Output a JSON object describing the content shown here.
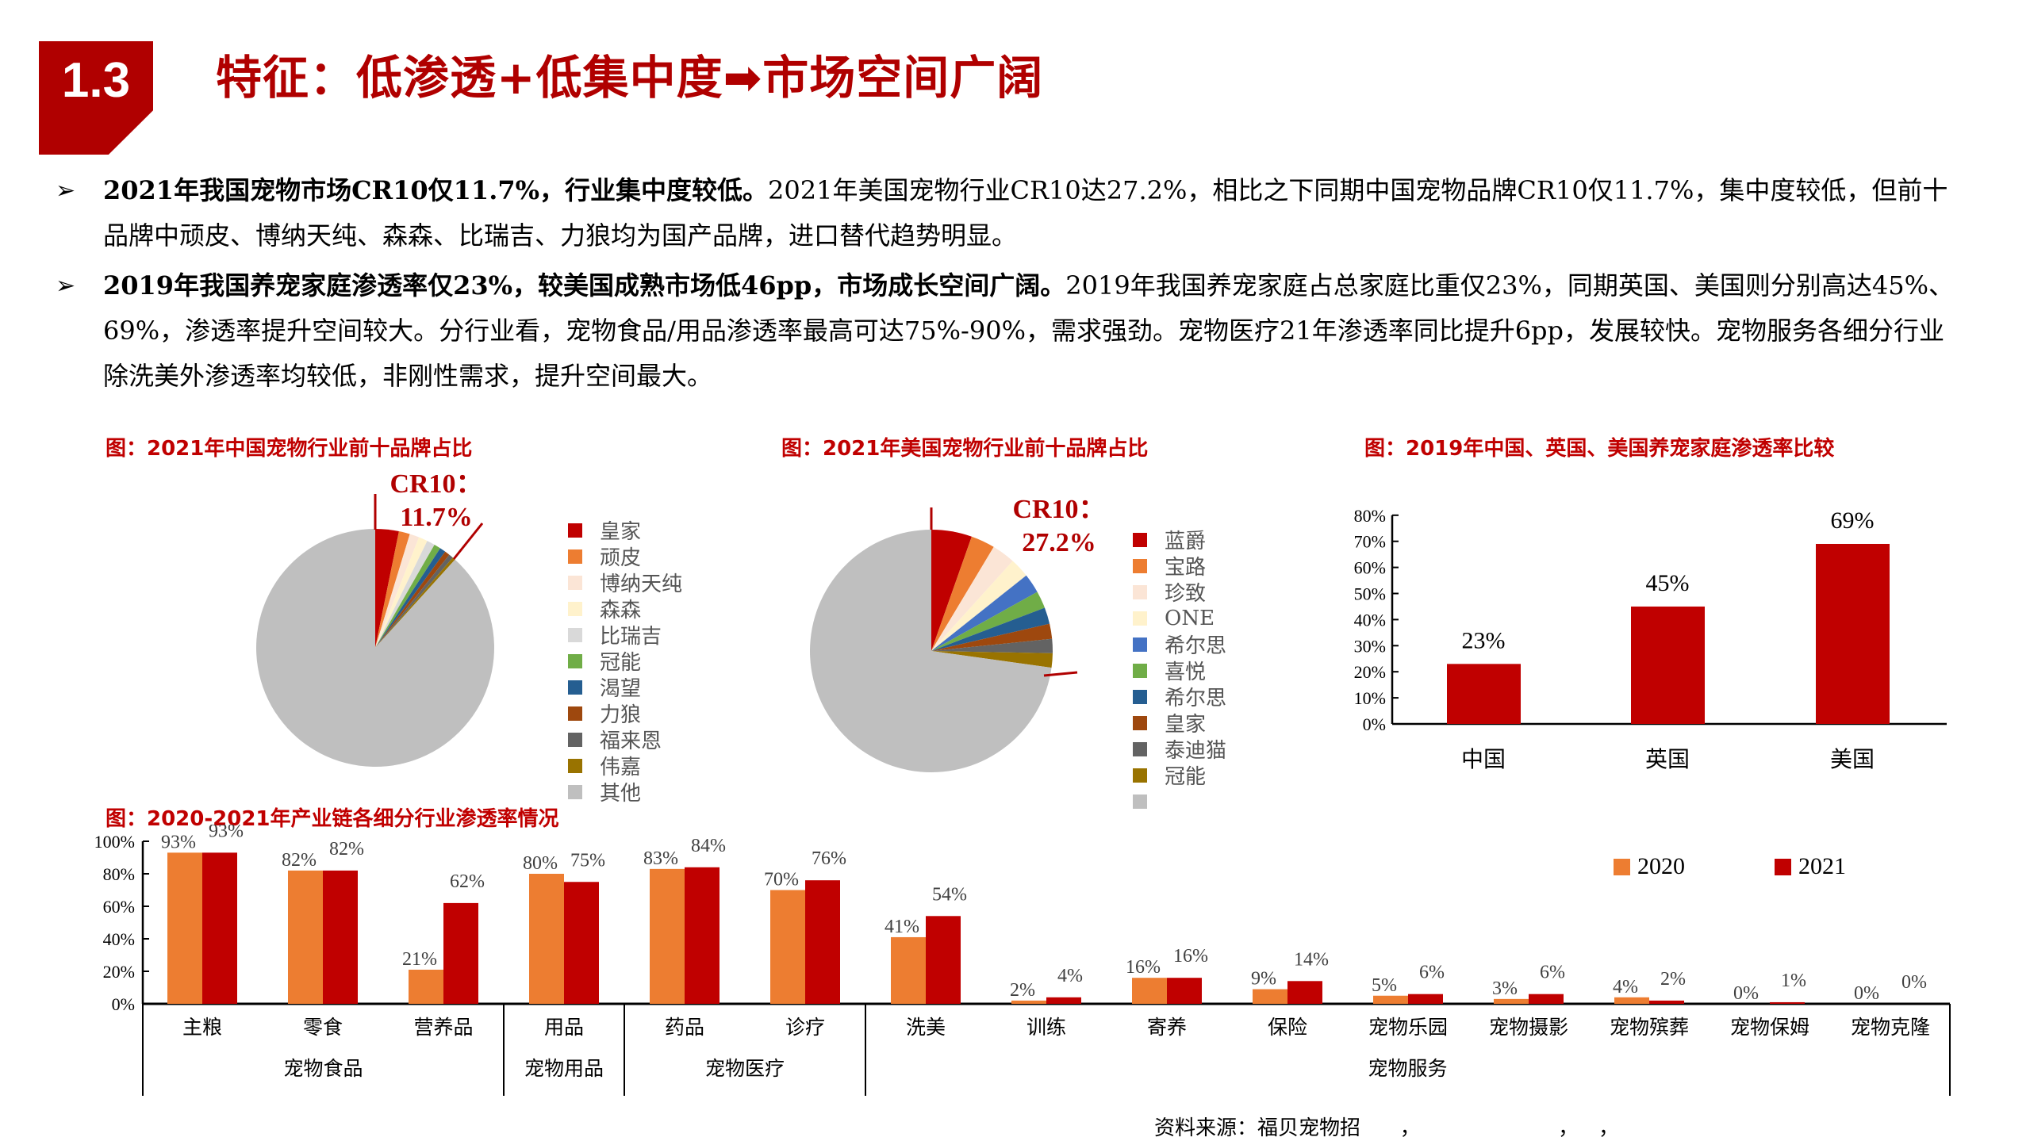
{
  "header": {
    "section_number": "1.3",
    "title": "特征：低渗透+低集中度➡市场空间广阔",
    "accent_color": "#B00000"
  },
  "bullets": [
    {
      "bold": "2021年我国宠物市场CR10仅11.7%，行业集中度较低。",
      "text": "2021年美国宠物行业CR10达27.2%，相比之下同期中国宠物品牌CR10仅11.7%，集中度较低，但前十品牌中顽皮、博纳天纯、森森、比瑞吉、力狼均为国产品牌，进口替代趋势明显。"
    },
    {
      "bold": "2019年我国养宠家庭渗透率仅23%，较美国成熟市场低46pp，市场成长空间广阔。",
      "text": "2019年我国养宠家庭占总家庭比重仅23%，同期英国、美国则分别高达45%、69%，渗透率提升空间较大。分行业看，宠物食品/用品渗透率最高可达75%-90%，需求强劲。宠物医疗21年渗透率同比提升6pp，发展较快。宠物服务各细分行业除洗美外渗透率均较低，非刚性需求，提升空间最大。"
    }
  ],
  "figures": {
    "china_pie_title": "图：2021年中国宠物行业前十品牌占比",
    "us_pie_title": "图：2021年美国宠物行业前十品牌占比",
    "country_bar_title": "图：2019年中国、英国、美国养宠家庭渗透率比较",
    "industry_bar_title": "图：2020-2021年产业链各细分行业渗透率情况"
  },
  "source": "资料来源：福贝宠物招      ，                     ，   ，",
  "chart_data": [
    {
      "type": "pie",
      "title": "图：2021年中国宠物行业前十品牌占比",
      "annotation": [
        "CR10：",
        "11.7%"
      ],
      "labels": [
        "皇家",
        "顽皮",
        "博纳天纯",
        "森森",
        "比瑞吉",
        "冠能",
        "渴望",
        "力狼",
        "福来恩",
        "伟嘉",
        "其他"
      ],
      "values": [
        3.2,
        1.5,
        1.3,
        1.2,
        1.1,
        0.9,
        0.8,
        0.7,
        0.6,
        0.4,
        88.3
      ],
      "colors": [
        "#C00000",
        "#ED7D31",
        "#FBE5D6",
        "#FFF2CC",
        "#D9D9D9",
        "#70AD47",
        "#255E91",
        "#9E480E",
        "#636363",
        "#997300",
        "#BFBFBF"
      ],
      "legend_position": "right"
    },
    {
      "type": "pie",
      "title": "图：2021年美国宠物行业前十品牌占比",
      "annotation": [
        "CR10：",
        "27.2%"
      ],
      "labels": [
        "蓝爵",
        "宝路",
        "珍致",
        "ONE",
        "希尔思",
        "喜悦",
        "希尔思",
        "皇家",
        "泰迪猫",
        "冠能",
        ""
      ],
      "values": [
        5.4,
        3.2,
        3.1,
        2.6,
        2.6,
        2.3,
        2.2,
        2.0,
        1.9,
        1.9,
        72.8
      ],
      "colors": [
        "#C00000",
        "#ED7D31",
        "#FBE5D6",
        "#FFF2CC",
        "#4472C4",
        "#70AD47",
        "#255E91",
        "#9E480E",
        "#636363",
        "#997300",
        "#BFBFBF"
      ],
      "legend_position": "right"
    },
    {
      "type": "bar",
      "title": "图：2019年中国、英国、美国养宠家庭渗透率比较",
      "categories": [
        "中国",
        "英国",
        "美国"
      ],
      "values": [
        23,
        45,
        69
      ],
      "value_labels": [
        "23%",
        "45%",
        "69%"
      ],
      "yticks": [
        "0%",
        "10%",
        "20%",
        "30%",
        "40%",
        "50%",
        "60%",
        "70%",
        "80%"
      ],
      "ylim": [
        0,
        80
      ],
      "color": "#C00000",
      "grid": false
    },
    {
      "type": "bar",
      "title": "图：2020-2021年产业链各细分行业渗透率情况",
      "categories": [
        "主粮",
        "零食",
        "营养品",
        "用品",
        "药品",
        "诊疗",
        "洗美",
        "训练",
        "寄养",
        "保险",
        "宠物乐园",
        "宠物摄影",
        "宠物殡葬",
        "宠物保姆",
        "宠物克隆"
      ],
      "groups": [
        {
          "label": "宠物食品",
          "span": 3
        },
        {
          "label": "宠物用品",
          "span": 1
        },
        {
          "label": "宠物医疗",
          "span": 2
        },
        {
          "label": "宠物服务",
          "span": 9
        }
      ],
      "series": [
        {
          "name": "2020",
          "color": "#ED7D31",
          "values": [
            93,
            82,
            21,
            80,
            83,
            70,
            41,
            2,
            16,
            9,
            5,
            3,
            4,
            0,
            0
          ]
        },
        {
          "name": "2021",
          "color": "#C00000",
          "values": [
            93,
            82,
            62,
            75,
            84,
            76,
            54,
            4,
            16,
            14,
            6,
            6,
            2,
            1,
            0
          ]
        }
      ],
      "yticks": [
        "0%",
        "20%",
        "40%",
        "60%",
        "80%",
        "100%"
      ],
      "ylim": [
        0,
        100
      ],
      "legend_position": "top-right",
      "grid": false
    }
  ]
}
